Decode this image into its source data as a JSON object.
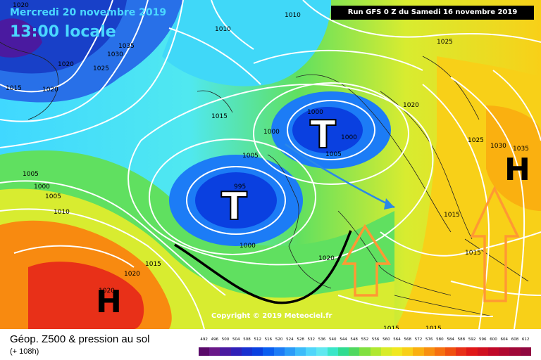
{
  "header": {
    "date": "Mercredi 20 novembre 2019",
    "local_time": "13:00 locale",
    "run": "Run GFS 0 Z du Samedi 16 novembre 2019"
  },
  "map": {
    "copyright": "Copyright © 2019 Meteociel.fr",
    "lows": [
      {
        "label": "T"
      },
      {
        "label": "T"
      }
    ],
    "highs": [
      {
        "label": "H"
      },
      {
        "label": "H"
      }
    ],
    "isobar_labels": [
      "1020",
      "1035",
      "1030",
      "1025",
      "1020",
      "1015",
      "1020",
      "1010",
      "1010",
      "1025",
      "1015",
      "1000",
      "1000",
      "1000",
      "1005",
      "1020",
      "1005",
      "995",
      "1000",
      "1005",
      "1000",
      "1005",
      "1010",
      "1015",
      "1020",
      "1020",
      "1025",
      "1030",
      "1035",
      "1015",
      "1015",
      "1015",
      "1015",
      "1020"
    ],
    "arrows": [
      {
        "name": "southeast-flow-arrow",
        "color": "#2b88e8"
      },
      {
        "name": "warm-advection-arrow-1",
        "color": "#ff9933"
      },
      {
        "name": "warm-advection-arrow-2",
        "color": "#ff9933"
      }
    ],
    "colors": {
      "front": "#000000",
      "isobar": "#ffffff"
    }
  },
  "footer": {
    "title": "Géop. Z500 & pression au sol",
    "subtitle": "(+ 108h)",
    "scale_labels": [
      "492",
      "496",
      "500",
      "504",
      "508",
      "512",
      "516",
      "520",
      "524",
      "528",
      "532",
      "536",
      "540",
      "544",
      "548",
      "552",
      "556",
      "560",
      "564",
      "568",
      "572",
      "576",
      "580",
      "584",
      "588",
      "592",
      "596",
      "600",
      "604",
      "608",
      "612"
    ],
    "scale_colors": [
      "#5a0a6a",
      "#6a1888",
      "#4a1aa0",
      "#3020b8",
      "#1830d0",
      "#0a40e0",
      "#0a5ef0",
      "#1c7cf6",
      "#2a9cf8",
      "#3cbcfa",
      "#50d6fa",
      "#60e8f0",
      "#3ae6c8",
      "#30dc90",
      "#50d860",
      "#80e040",
      "#b0e830",
      "#d8ec28",
      "#f0e820",
      "#f8d018",
      "#fab010",
      "#f89010",
      "#f67010",
      "#f05010",
      "#e83018",
      "#e01818",
      "#d01020",
      "#c00828",
      "#b00830",
      "#a00838",
      "#900840"
    ]
  }
}
